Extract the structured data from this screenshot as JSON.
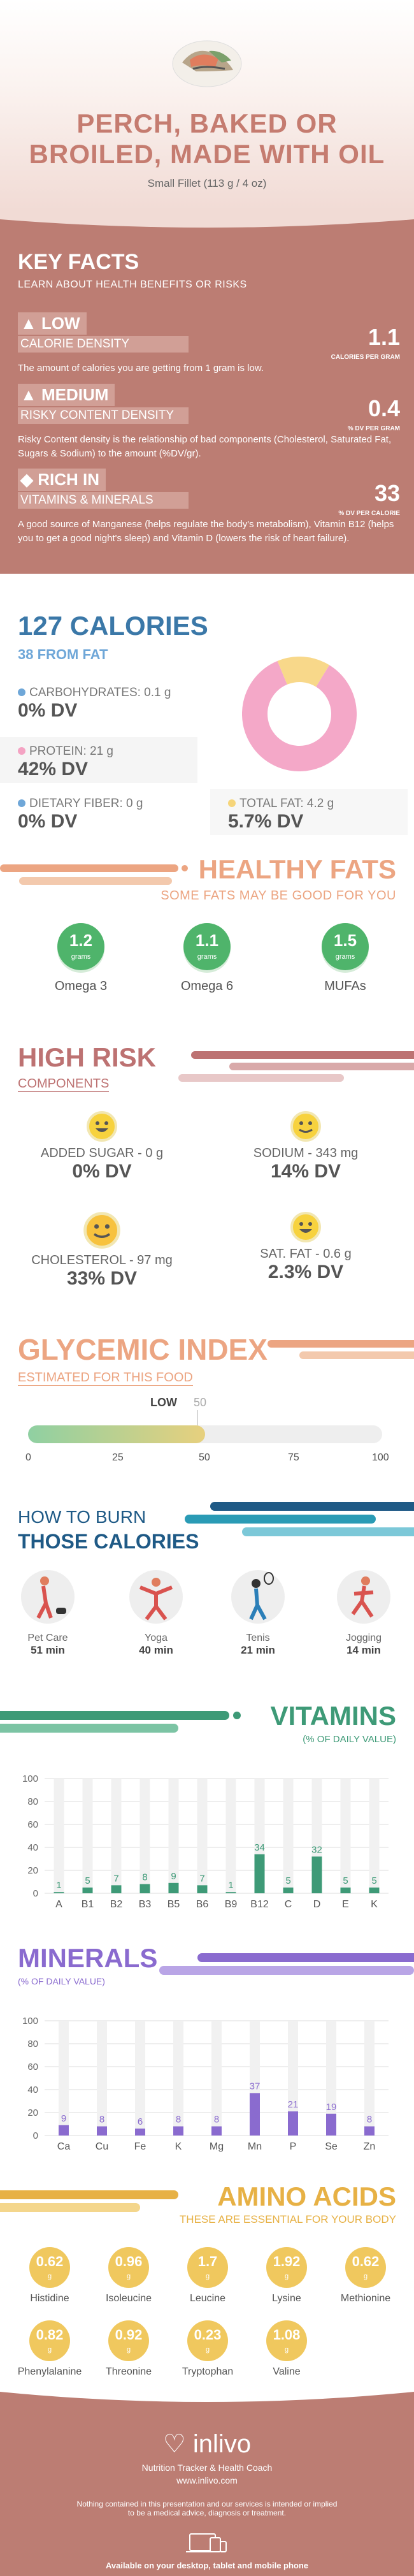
{
  "header": {
    "title_line1": "PERCH, BAKED OR",
    "title_line2": "BROILED, MADE WITH OIL",
    "subtitle": "Small Fillet (113 g / 4 oz)"
  },
  "key_facts": {
    "heading": "KEY FACTS",
    "subheading": "LEARN ABOUT HEALTH BENEFITS OR RISKS",
    "items": [
      {
        "tag": "LOW",
        "tag2": "CALORIE DENSITY",
        "value": "1.1",
        "unit": "CALORIES PER GRAM",
        "desc": "The amount of calories you are getting from 1 gram is low."
      },
      {
        "tag": "MEDIUM",
        "tag2": "RISKY CONTENT DENSITY",
        "value": "0.4",
        "unit": "% DV PER GRAM",
        "desc": "Risky Content density is the relationship of bad components (Cholesterol, Saturated Fat, Sugars & Sodium) to the amount (%DV/gr)."
      },
      {
        "tag": "RICH IN",
        "tag2": "VITAMINS & MINERALS",
        "value": "33",
        "unit": "% DV PER CALORIE",
        "desc": "A good source of Manganese (helps regulate the body's metabolism), Vitamin B12 (helps you to get a good night's sleep) and Vitamin D (lowers the risk of heart failure)."
      }
    ]
  },
  "calories": {
    "heading": "127 CALORIES",
    "sub": "38 FROM FAT",
    "nutrients": [
      {
        "label": "CARBOHYDRATES: 0.1 g",
        "value": "0% DV",
        "color": "#6fa7d8"
      },
      {
        "label": "PROTEIN: 21 g",
        "value": "42% DV",
        "color": "#f4a3c3"
      },
      {
        "label": "DIETARY FIBER: 0 g",
        "value": "0% DV",
        "color": "#6fa7d8"
      },
      {
        "label": "TOTAL FAT: 4.2 g",
        "value": "5.7% DV",
        "color": "#f6d57a"
      }
    ],
    "donut": [
      {
        "name": "protein",
        "fraction": 0.85,
        "color": "#f4a8c8"
      },
      {
        "name": "fat",
        "fraction": 0.15,
        "color": "#f8d88a"
      }
    ]
  },
  "healthy_fats": {
    "heading": "HEALTHY FATS",
    "sub": "SOME FATS MAY BE GOOD FOR YOU",
    "unit": "grams",
    "items": [
      {
        "value": "1.2",
        "name": "Omega 3"
      },
      {
        "value": "1.1",
        "name": "Omega 6"
      },
      {
        "value": "1.5",
        "name": "MUFAs"
      }
    ]
  },
  "high_risk": {
    "heading": "HIGH RISK",
    "sub": "COMPONENTS",
    "items": [
      {
        "label": "ADDED SUGAR - 0 g",
        "value": "0% DV"
      },
      {
        "label": "SODIUM - 343 mg",
        "value": "14% DV"
      },
      {
        "label": "CHOLESTEROL - 97 mg",
        "value": "33% DV"
      },
      {
        "label": "SAT. FAT - 0.6 g",
        "value": "2.3% DV"
      }
    ]
  },
  "glycemic": {
    "heading": "GLYCEMIC INDEX",
    "sub": "ESTIMATED FOR THIS FOOD",
    "level": "LOW",
    "value": "50",
    "value_num": 50,
    "ticks": [
      "0",
      "25",
      "50",
      "75",
      "100"
    ]
  },
  "burn": {
    "line1": "HOW TO BURN",
    "line2": "THOSE CALORIES",
    "activities": [
      {
        "name": "Pet Care",
        "minutes": "51 min",
        "icon": "pet-care-icon"
      },
      {
        "name": "Yoga",
        "minutes": "40 min",
        "icon": "yoga-icon"
      },
      {
        "name": "Tenis",
        "minutes": "21 min",
        "icon": "tennis-icon"
      },
      {
        "name": "Jogging",
        "minutes": "14 min",
        "icon": "jogging-icon"
      }
    ]
  },
  "vitamins": {
    "heading": "VITAMINS",
    "sub": "(% OF DAILY VALUE)",
    "chart_data": {
      "type": "bar",
      "categories": [
        "A",
        "B1",
        "B2",
        "B3",
        "B5",
        "B6",
        "B9",
        "B12",
        "C",
        "D",
        "E",
        "K"
      ],
      "values": [
        1,
        5,
        7,
        8,
        9,
        7,
        1,
        34,
        5,
        32,
        5,
        5
      ],
      "ylim": [
        0,
        100
      ],
      "yticks": [
        "0",
        "20",
        "40",
        "60",
        "80",
        "100"
      ],
      "color": "#3e9a77"
    }
  },
  "minerals": {
    "heading": "MINERALS",
    "sub": "(% OF DAILY VALUE)",
    "chart_data": {
      "type": "bar",
      "categories": [
        "Ca",
        "Cu",
        "Fe",
        "K",
        "Mg",
        "Mn",
        "P",
        "Se",
        "Zn"
      ],
      "values": [
        9,
        8,
        6,
        8,
        8,
        37,
        21,
        19,
        8
      ],
      "ylim": [
        0,
        100
      ],
      "yticks": [
        "0",
        "20",
        "40",
        "60",
        "80",
        "100"
      ],
      "color": "#8a6bcf"
    }
  },
  "amino": {
    "heading": "AMINO ACIDS",
    "sub": "THESE ARE ESSENTIAL FOR YOUR BODY",
    "unit": "g",
    "items": [
      {
        "value": "0.62",
        "name": "Histidine"
      },
      {
        "value": "0.96",
        "name": "Isoleucine"
      },
      {
        "value": "1.7",
        "name": "Leucine"
      },
      {
        "value": "1.92",
        "name": "Lysine"
      },
      {
        "value": "0.62",
        "name": "Methionine"
      },
      {
        "value": "0.82",
        "name": "Phenylalanine"
      },
      {
        "value": "0.92",
        "name": "Threonine"
      },
      {
        "value": "0.23",
        "name": "Tryptophan"
      },
      {
        "value": "1.08",
        "name": "Valine"
      }
    ]
  },
  "footer": {
    "brand": "inlivo",
    "tagline": "Nutrition Tracker & Health Coach",
    "url": "www.inlivo.com",
    "disclaimer_line1": "Nothing contained in this presentation and our services is intended or implied",
    "disclaimer_line2": "to be a medical advice, diagnosis or treatment.",
    "available": "Available on your desktop, tablet and mobile phone"
  }
}
